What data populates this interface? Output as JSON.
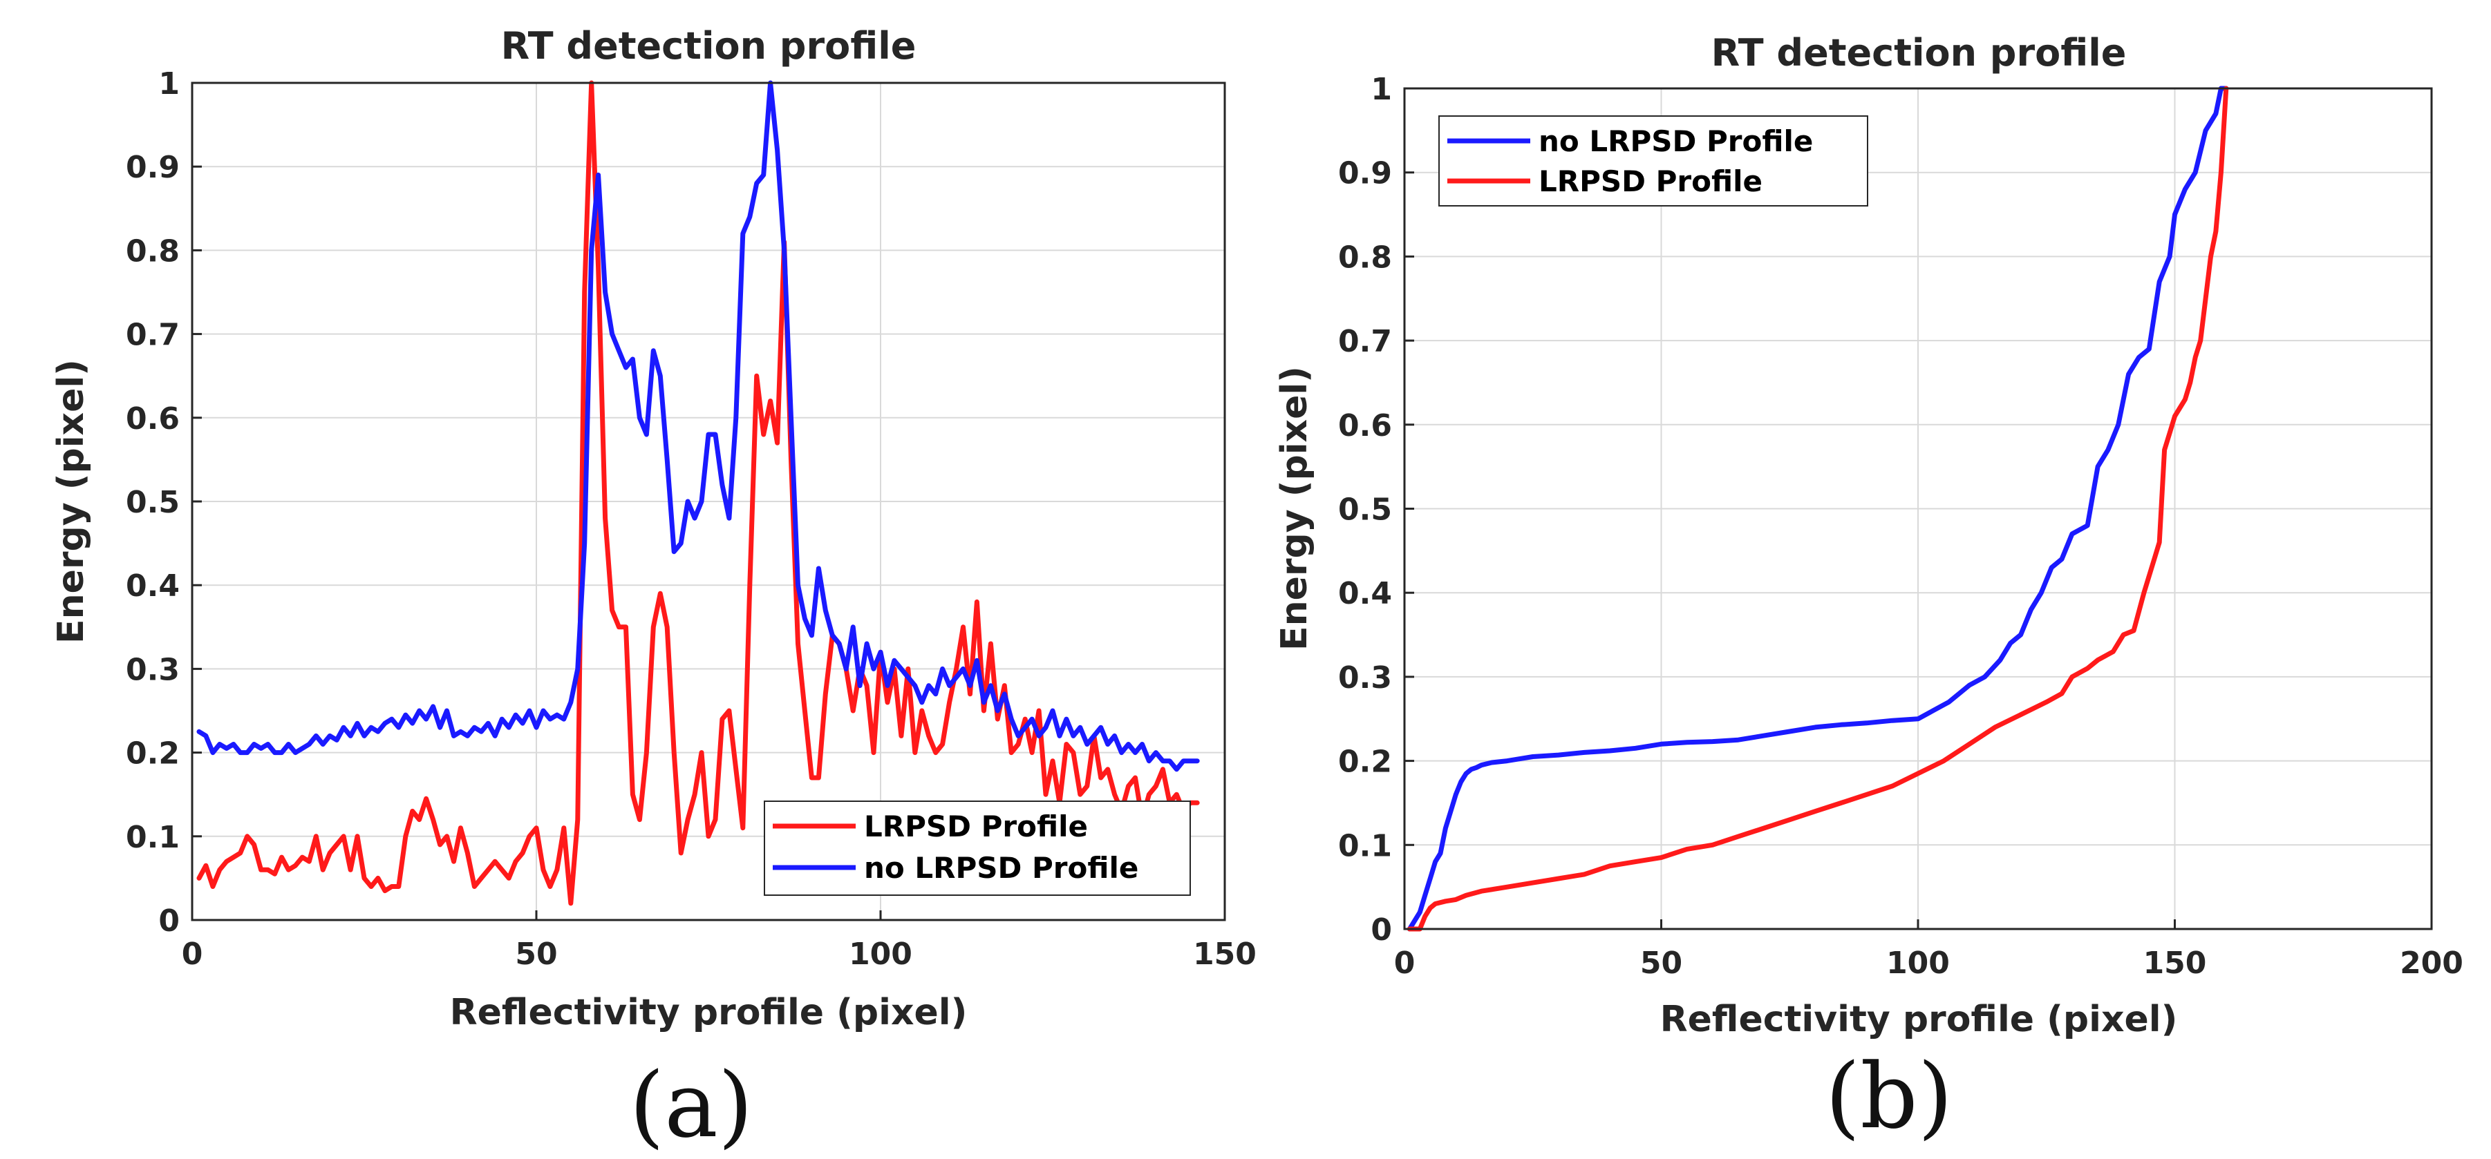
{
  "colors": {
    "red": "#ff1a1a",
    "blue": "#1a1aff"
  },
  "chart_data": [
    {
      "panel": "(a)",
      "type": "line",
      "title": "RT detection profile",
      "xlabel": "Reflectivity profile (pixel)",
      "ylabel": "Energy (pixel)",
      "xlim": [
        0,
        150
      ],
      "ylim": [
        0,
        1
      ],
      "xticks": [
        "0",
        "50",
        "100",
        "150"
      ],
      "yticks": [
        "0",
        "0.1",
        "0.2",
        "0.3",
        "0.4",
        "0.5",
        "0.6",
        "0.7",
        "0.8",
        "0.9",
        "1"
      ],
      "legend": {
        "location": "bottom-right",
        "entries": [
          "LRPSD Profile",
          "no LRPSD Profile"
        ]
      },
      "series": [
        {
          "name": "LRPSD Profile",
          "color": "red",
          "x": [
            1,
            2,
            3,
            4,
            5,
            6,
            7,
            8,
            9,
            10,
            11,
            12,
            13,
            14,
            15,
            16,
            17,
            18,
            19,
            20,
            21,
            22,
            23,
            24,
            25,
            26,
            27,
            28,
            29,
            30,
            31,
            32,
            33,
            34,
            35,
            36,
            37,
            38,
            39,
            40,
            41,
            42,
            43,
            44,
            45,
            46,
            47,
            48,
            49,
            50,
            51,
            52,
            53,
            54,
            55,
            56,
            57,
            58,
            59,
            60,
            61,
            62,
            63,
            64,
            65,
            66,
            67,
            68,
            69,
            70,
            71,
            72,
            73,
            74,
            75,
            76,
            77,
            78,
            79,
            80,
            81,
            82,
            83,
            84,
            85,
            86,
            87,
            88,
            89,
            90,
            91,
            92,
            93,
            94,
            95,
            96,
            97,
            98,
            99,
            100,
            101,
            102,
            103,
            104,
            105,
            106,
            107,
            108,
            109,
            110,
            111,
            112,
            113,
            114,
            115,
            116,
            117,
            118,
            119,
            120,
            121,
            122,
            123,
            124,
            125,
            126,
            127,
            128,
            129,
            130,
            131,
            132,
            133,
            134,
            135,
            136,
            137,
            138,
            139,
            140,
            141,
            142,
            143,
            144,
            145,
            146
          ],
          "y": [
            0.05,
            0.065,
            0.04,
            0.06,
            0.07,
            0.075,
            0.08,
            0.1,
            0.09,
            0.06,
            0.06,
            0.055,
            0.075,
            0.06,
            0.065,
            0.075,
            0.07,
            0.1,
            0.06,
            0.08,
            0.09,
            0.1,
            0.06,
            0.1,
            0.05,
            0.04,
            0.05,
            0.035,
            0.04,
            0.04,
            0.1,
            0.13,
            0.12,
            0.145,
            0.12,
            0.09,
            0.1,
            0.07,
            0.11,
            0.08,
            0.04,
            0.05,
            0.06,
            0.07,
            0.06,
            0.05,
            0.07,
            0.08,
            0.1,
            0.11,
            0.06,
            0.04,
            0.06,
            0.11,
            0.02,
            0.12,
            0.75,
            1.0,
            0.78,
            0.48,
            0.37,
            0.35,
            0.35,
            0.15,
            0.12,
            0.2,
            0.35,
            0.39,
            0.35,
            0.2,
            0.08,
            0.12,
            0.15,
            0.2,
            0.1,
            0.12,
            0.24,
            0.25,
            0.18,
            0.11,
            0.4,
            0.65,
            0.58,
            0.62,
            0.57,
            0.81,
            0.55,
            0.33,
            0.25,
            0.17,
            0.17,
            0.27,
            0.34,
            0.33,
            0.3,
            0.25,
            0.3,
            0.28,
            0.2,
            0.32,
            0.26,
            0.3,
            0.22,
            0.3,
            0.2,
            0.25,
            0.22,
            0.2,
            0.21,
            0.26,
            0.3,
            0.35,
            0.27,
            0.38,
            0.25,
            0.33,
            0.24,
            0.28,
            0.2,
            0.21,
            0.24,
            0.2,
            0.25,
            0.15,
            0.19,
            0.14,
            0.21,
            0.2,
            0.15,
            0.16,
            0.22,
            0.17,
            0.18,
            0.15,
            0.13,
            0.16,
            0.17,
            0.12,
            0.15,
            0.16,
            0.18,
            0.14,
            0.15,
            0.13,
            0.14,
            0.14
          ]
        },
        {
          "name": "no LRPSD Profile",
          "color": "blue",
          "x": [
            1,
            2,
            3,
            4,
            5,
            6,
            7,
            8,
            9,
            10,
            11,
            12,
            13,
            14,
            15,
            16,
            17,
            18,
            19,
            20,
            21,
            22,
            23,
            24,
            25,
            26,
            27,
            28,
            29,
            30,
            31,
            32,
            33,
            34,
            35,
            36,
            37,
            38,
            39,
            40,
            41,
            42,
            43,
            44,
            45,
            46,
            47,
            48,
            49,
            50,
            51,
            52,
            53,
            54,
            55,
            56,
            57,
            58,
            59,
            60,
            61,
            62,
            63,
            64,
            65,
            66,
            67,
            68,
            69,
            70,
            71,
            72,
            73,
            74,
            75,
            76,
            77,
            78,
            79,
            80,
            81,
            82,
            83,
            84,
            85,
            86,
            87,
            88,
            89,
            90,
            91,
            92,
            93,
            94,
            95,
            96,
            97,
            98,
            99,
            100,
            101,
            102,
            103,
            104,
            105,
            106,
            107,
            108,
            109,
            110,
            111,
            112,
            113,
            114,
            115,
            116,
            117,
            118,
            119,
            120,
            121,
            122,
            123,
            124,
            125,
            126,
            127,
            128,
            129,
            130,
            131,
            132,
            133,
            134,
            135,
            136,
            137,
            138,
            139,
            140,
            141,
            142,
            143,
            144,
            145,
            146
          ],
          "y": [
            0.225,
            0.22,
            0.2,
            0.21,
            0.205,
            0.21,
            0.2,
            0.2,
            0.21,
            0.205,
            0.21,
            0.2,
            0.2,
            0.21,
            0.2,
            0.205,
            0.21,
            0.22,
            0.21,
            0.22,
            0.215,
            0.23,
            0.22,
            0.235,
            0.22,
            0.23,
            0.225,
            0.235,
            0.24,
            0.23,
            0.245,
            0.235,
            0.25,
            0.24,
            0.255,
            0.23,
            0.25,
            0.22,
            0.225,
            0.22,
            0.23,
            0.225,
            0.235,
            0.22,
            0.24,
            0.23,
            0.245,
            0.235,
            0.25,
            0.23,
            0.25,
            0.24,
            0.245,
            0.24,
            0.26,
            0.3,
            0.45,
            0.8,
            0.89,
            0.75,
            0.7,
            0.68,
            0.66,
            0.67,
            0.6,
            0.58,
            0.68,
            0.65,
            0.55,
            0.44,
            0.45,
            0.5,
            0.48,
            0.5,
            0.58,
            0.58,
            0.52,
            0.48,
            0.6,
            0.82,
            0.84,
            0.88,
            0.89,
            1.0,
            0.92,
            0.8,
            0.6,
            0.4,
            0.36,
            0.34,
            0.42,
            0.37,
            0.34,
            0.33,
            0.3,
            0.35,
            0.28,
            0.33,
            0.3,
            0.32,
            0.28,
            0.31,
            0.3,
            0.29,
            0.28,
            0.26,
            0.28,
            0.27,
            0.3,
            0.28,
            0.29,
            0.3,
            0.28,
            0.31,
            0.26,
            0.28,
            0.25,
            0.27,
            0.24,
            0.22,
            0.23,
            0.24,
            0.22,
            0.23,
            0.25,
            0.22,
            0.24,
            0.22,
            0.23,
            0.21,
            0.22,
            0.23,
            0.21,
            0.22,
            0.2,
            0.21,
            0.2,
            0.21,
            0.19,
            0.2,
            0.19,
            0.19,
            0.18,
            0.19,
            0.19,
            0.19
          ]
        }
      ]
    },
    {
      "panel": "(b)",
      "type": "line",
      "title": "RT detection profile",
      "xlabel": "Reflectivity profile (pixel)",
      "ylabel": "Energy (pixel)",
      "xlim": [
        0,
        200
      ],
      "ylim": [
        0,
        1
      ],
      "xticks": [
        "0",
        "50",
        "100",
        "150",
        "200"
      ],
      "yticks": [
        "0",
        "0.1",
        "0.2",
        "0.3",
        "0.4",
        "0.5",
        "0.6",
        "0.7",
        "0.8",
        "0.9",
        "1"
      ],
      "legend": {
        "location": "top-left",
        "entries": [
          "no LRPSD Profile",
          "LRPSD Profile"
        ]
      },
      "series": [
        {
          "name": "no LRPSD Profile",
          "color": "blue",
          "x": [
            1,
            3,
            4,
            5,
            6,
            7,
            8,
            9,
            10,
            11,
            12,
            13,
            14,
            15,
            17,
            20,
            25,
            30,
            35,
            40,
            45,
            50,
            55,
            60,
            65,
            70,
            75,
            80,
            85,
            90,
            95,
            100,
            103,
            106,
            110,
            113,
            116,
            118,
            120,
            122,
            124,
            126,
            128,
            130,
            133,
            135,
            137,
            139,
            141,
            143,
            145,
            147,
            149,
            150,
            152,
            154,
            156,
            158,
            159,
            160
          ],
          "y": [
            0,
            0.02,
            0.04,
            0.06,
            0.08,
            0.09,
            0.12,
            0.14,
            0.16,
            0.175,
            0.185,
            0.19,
            0.192,
            0.195,
            0.198,
            0.2,
            0.205,
            0.207,
            0.21,
            0.212,
            0.215,
            0.22,
            0.222,
            0.223,
            0.225,
            0.23,
            0.235,
            0.24,
            0.243,
            0.245,
            0.248,
            0.25,
            0.26,
            0.27,
            0.29,
            0.3,
            0.32,
            0.34,
            0.35,
            0.38,
            0.4,
            0.43,
            0.44,
            0.47,
            0.48,
            0.55,
            0.57,
            0.6,
            0.66,
            0.68,
            0.69,
            0.77,
            0.8,
            0.85,
            0.88,
            0.9,
            0.95,
            0.97,
            1.0,
            1.0
          ]
        },
        {
          "name": "LRPSD Profile",
          "color": "red",
          "x": [
            1,
            3,
            4,
            5,
            6,
            8,
            10,
            12,
            15,
            20,
            25,
            30,
            35,
            40,
            45,
            50,
            55,
            60,
            65,
            70,
            75,
            80,
            85,
            90,
            95,
            100,
            105,
            110,
            115,
            120,
            125,
            128,
            130,
            133,
            135,
            138,
            140,
            142,
            144,
            146,
            147,
            148,
            149,
            150,
            151,
            152,
            153,
            154,
            155,
            156,
            157,
            158,
            159,
            160
          ],
          "y": [
            0,
            0,
            0.015,
            0.025,
            0.03,
            0.033,
            0.035,
            0.04,
            0.045,
            0.05,
            0.055,
            0.06,
            0.065,
            0.075,
            0.08,
            0.085,
            0.095,
            0.1,
            0.11,
            0.12,
            0.13,
            0.14,
            0.15,
            0.16,
            0.17,
            0.185,
            0.2,
            0.22,
            0.24,
            0.255,
            0.27,
            0.28,
            0.3,
            0.31,
            0.32,
            0.33,
            0.35,
            0.355,
            0.4,
            0.44,
            0.46,
            0.57,
            0.59,
            0.61,
            0.62,
            0.63,
            0.65,
            0.68,
            0.7,
            0.75,
            0.8,
            0.83,
            0.9,
            1.0
          ]
        }
      ]
    }
  ]
}
